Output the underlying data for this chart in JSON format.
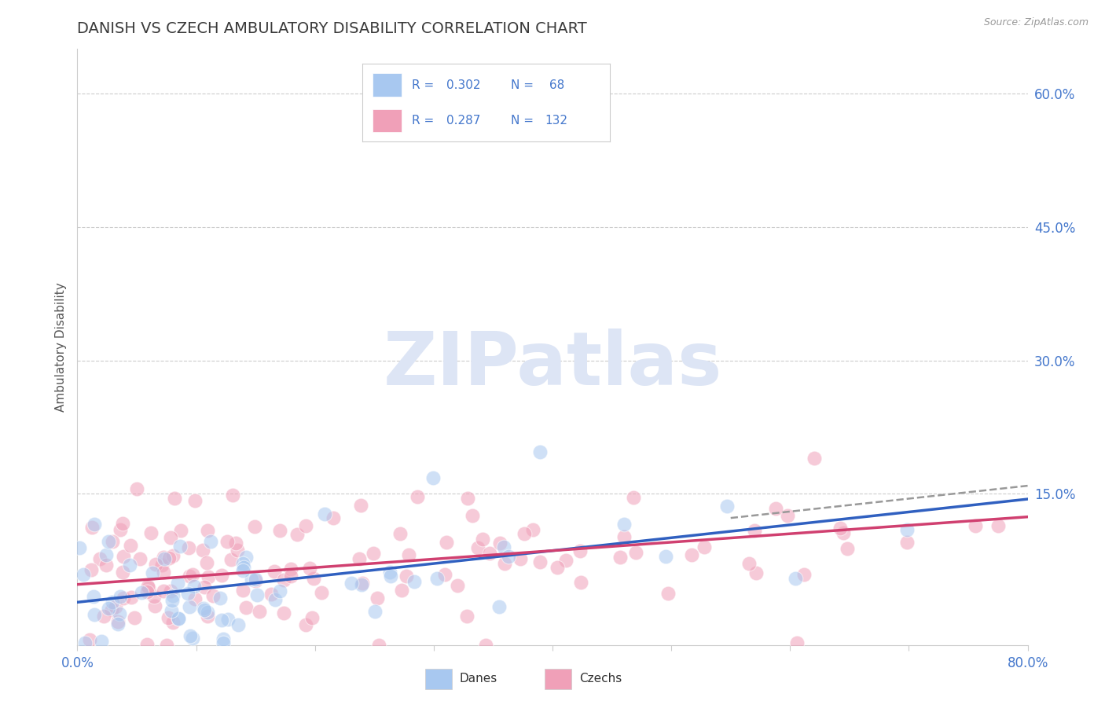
{
  "title": "DANISH VS CZECH AMBULATORY DISABILITY CORRELATION CHART",
  "source": "Source: ZipAtlas.com",
  "ylabel": "Ambulatory Disability",
  "xlim": [
    0.0,
    0.8
  ],
  "ylim": [
    -0.02,
    0.65
  ],
  "yticks": [
    0.15,
    0.3,
    0.45,
    0.6
  ],
  "ytick_labels": [
    "15.0%",
    "30.0%",
    "45.0%",
    "60.0%"
  ],
  "xticks": [
    0.0,
    0.1,
    0.2,
    0.3,
    0.4,
    0.5,
    0.6,
    0.7,
    0.8
  ],
  "dane_color": "#a8c8f0",
  "dane_edge_color": "#a8c8f0",
  "czech_color": "#f0a0b8",
  "czech_edge_color": "#f0a0b8",
  "dane_line_color": "#3060c0",
  "czech_line_color": "#d04070",
  "dashed_line_color": "#999999",
  "title_color": "#3a3a3a",
  "axis_label_color": "#555555",
  "tick_label_color": "#4477cc",
  "legend_text_color": "#4477cc",
  "watermark_color": "#dde5f5",
  "background_color": "#ffffff",
  "grid_color": "#cccccc",
  "dane_intercept": 0.028,
  "dane_slope": 0.145,
  "czech_intercept": 0.048,
  "czech_slope": 0.095,
  "dane_N": 68,
  "czech_N": 132,
  "dane_seed": 12,
  "czech_seed": 99,
  "point_size": 180,
  "point_alpha": 0.55
}
